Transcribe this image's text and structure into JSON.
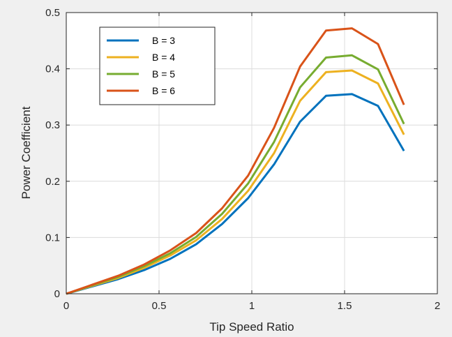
{
  "chart_data": {
    "type": "line",
    "title": "",
    "xlabel": "Tip Speed Ratio",
    "ylabel": "Power Coefficient",
    "xlim": [
      0,
      2
    ],
    "ylim": [
      0,
      0.5
    ],
    "xticks": [
      0,
      0.5,
      1,
      1.5,
      2
    ],
    "xtick_labels": [
      "0",
      "0.5",
      "1",
      "1.5",
      "2"
    ],
    "yticks": [
      0,
      0.1,
      0.2,
      0.3,
      0.4,
      0.5
    ],
    "ytick_labels": [
      "0",
      "0.1",
      "0.2",
      "0.3",
      "0.4",
      "0.5"
    ],
    "grid": true,
    "legend_position": "top-left",
    "x": [
      0,
      0.14,
      0.28,
      0.42,
      0.56,
      0.7,
      0.84,
      0.98,
      1.12,
      1.26,
      1.4,
      1.54,
      1.68,
      1.82
    ],
    "series": [
      {
        "name": "B = 3",
        "color": "#0072bd",
        "values": [
          0,
          0.013,
          0.026,
          0.042,
          0.062,
          0.088,
          0.124,
          0.17,
          0.23,
          0.306,
          0.352,
          0.355,
          0.334,
          0.254
        ]
      },
      {
        "name": "B = 4",
        "color": "#edb120",
        "values": [
          0,
          0.014,
          0.028,
          0.046,
          0.068,
          0.095,
          0.133,
          0.183,
          0.25,
          0.343,
          0.394,
          0.397,
          0.374,
          0.283
        ]
      },
      {
        "name": "B = 5",
        "color": "#77ac30",
        "values": [
          0,
          0.015,
          0.03,
          0.049,
          0.072,
          0.101,
          0.142,
          0.196,
          0.27,
          0.367,
          0.42,
          0.424,
          0.399,
          0.302
        ]
      },
      {
        "name": "B = 6",
        "color": "#d95319",
        "values": [
          0,
          0.016,
          0.032,
          0.052,
          0.077,
          0.108,
          0.152,
          0.21,
          0.295,
          0.404,
          0.468,
          0.472,
          0.444,
          0.336
        ]
      }
    ]
  }
}
